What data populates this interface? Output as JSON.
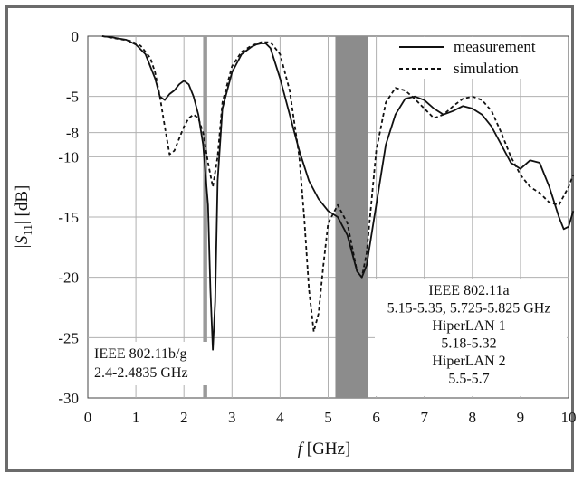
{
  "chart_data": {
    "type": "line",
    "xlabel_italic": "f",
    "xlabel_unit": "[GHz]",
    "ylabel_main": "|S",
    "ylabel_sub": "11",
    "ylabel_unit": "| [dB]",
    "xlim": [
      0,
      10
    ],
    "ylim": [
      -30,
      0
    ],
    "xticks": [
      "0",
      "1",
      "2",
      "3",
      "4",
      "5",
      "6",
      "7",
      "8",
      "9",
      "10"
    ],
    "yticks": [
      {
        "v": 0,
        "label": "0"
      },
      {
        "v": -5,
        "label": "-5"
      },
      {
        "v": -8,
        "label": "-8"
      },
      {
        "v": -10,
        "label": "-10"
      },
      {
        "v": -15,
        "label": "-15"
      },
      {
        "v": -20,
        "label": "-20"
      },
      {
        "v": -25,
        "label": "-25"
      },
      {
        "v": -30,
        "label": "-30"
      }
    ],
    "grid": true,
    "legend_position": "top-right",
    "bands": [
      {
        "x0": 2.4,
        "x1": 2.4835,
        "color": "#9a9a9a"
      },
      {
        "x0": 5.15,
        "x1": 5.825,
        "color": "#8c8c8c"
      }
    ],
    "series": [
      {
        "name": "measurement",
        "style": "solid",
        "x": [
          0.3,
          0.5,
          0.8,
          1.0,
          1.2,
          1.4,
          1.5,
          1.6,
          1.7,
          1.8,
          1.9,
          2.0,
          2.1,
          2.2,
          2.3,
          2.4,
          2.5,
          2.55,
          2.6,
          2.65,
          2.7,
          2.8,
          3.0,
          3.2,
          3.4,
          3.5,
          3.6,
          3.7,
          3.8,
          4.0,
          4.2,
          4.4,
          4.6,
          4.8,
          5.0,
          5.2,
          5.4,
          5.6,
          5.7,
          5.8,
          6.0,
          6.2,
          6.4,
          6.6,
          6.8,
          7.0,
          7.2,
          7.4,
          7.6,
          7.8,
          8.0,
          8.2,
          8.4,
          8.6,
          8.8,
          9.0,
          9.2,
          9.4,
          9.6,
          9.8,
          9.9,
          10.0,
          10.1
        ],
        "y": [
          0,
          -0.1,
          -0.3,
          -0.7,
          -1.5,
          -3.5,
          -5.0,
          -5.3,
          -4.8,
          -4.5,
          -4.0,
          -3.7,
          -4.0,
          -5.0,
          -6.5,
          -9.0,
          -14.0,
          -21.0,
          -26.0,
          -22.0,
          -12.0,
          -6.0,
          -3.0,
          -1.5,
          -0.9,
          -0.7,
          -0.6,
          -0.6,
          -1.0,
          -3.5,
          -6.5,
          -9.5,
          -12.0,
          -13.5,
          -14.5,
          -15.0,
          -16.5,
          -19.5,
          -20.0,
          -19.0,
          -14.0,
          -9.0,
          -6.5,
          -5.2,
          -5.0,
          -5.3,
          -6.0,
          -6.5,
          -6.2,
          -5.8,
          -6.0,
          -6.5,
          -7.5,
          -9.0,
          -10.5,
          -11.0,
          -10.3,
          -10.5,
          -12.5,
          -15.0,
          -16.0,
          -15.8,
          -14.5
        ]
      },
      {
        "name": "simulation",
        "style": "dashed",
        "x": [
          0.3,
          0.6,
          0.9,
          1.1,
          1.3,
          1.4,
          1.5,
          1.6,
          1.7,
          1.8,
          1.9,
          2.0,
          2.1,
          2.2,
          2.3,
          2.4,
          2.5,
          2.6,
          2.7,
          2.8,
          3.0,
          3.2,
          3.4,
          3.6,
          3.8,
          4.0,
          4.2,
          4.4,
          4.5,
          4.6,
          4.7,
          4.8,
          4.9,
          5.0,
          5.2,
          5.4,
          5.6,
          5.7,
          5.8,
          6.0,
          6.2,
          6.4,
          6.6,
          6.8,
          7.0,
          7.2,
          7.4,
          7.6,
          7.8,
          8.0,
          8.2,
          8.4,
          8.6,
          8.8,
          9.0,
          9.2,
          9.4,
          9.6,
          9.8,
          10.0,
          10.1
        ],
        "y": [
          0,
          -0.2,
          -0.4,
          -0.8,
          -1.8,
          -3.0,
          -5.0,
          -7.5,
          -9.8,
          -9.5,
          -8.5,
          -7.5,
          -6.8,
          -6.5,
          -6.8,
          -8.0,
          -10.5,
          -12.5,
          -10.0,
          -5.5,
          -2.5,
          -1.3,
          -0.8,
          -0.5,
          -0.5,
          -1.5,
          -4.5,
          -10.0,
          -15.0,
          -21.0,
          -24.5,
          -23.0,
          -19.0,
          -15.5,
          -14.0,
          -15.5,
          -19.5,
          -20.0,
          -18.0,
          -9.5,
          -5.5,
          -4.3,
          -4.5,
          -5.2,
          -6.0,
          -6.8,
          -6.5,
          -5.8,
          -5.2,
          -5.0,
          -5.3,
          -6.2,
          -8.0,
          -10.0,
          -11.5,
          -12.5,
          -13.0,
          -13.8,
          -14.0,
          -12.5,
          -11.5
        ]
      }
    ],
    "annotations": [
      {
        "anchor": "left-band",
        "lines": [
          "IEEE 802.11b/g",
          "2.4-2.4835 GHz"
        ]
      },
      {
        "anchor": "right-band",
        "lines": [
          "IEEE 802.11a",
          "5.15-5.35, 5.725-5.825 GHz",
          "HiperLAN 1",
          "5.18-5.32",
          "HiperLAN 2",
          "5.5-5.7"
        ]
      }
    ]
  }
}
